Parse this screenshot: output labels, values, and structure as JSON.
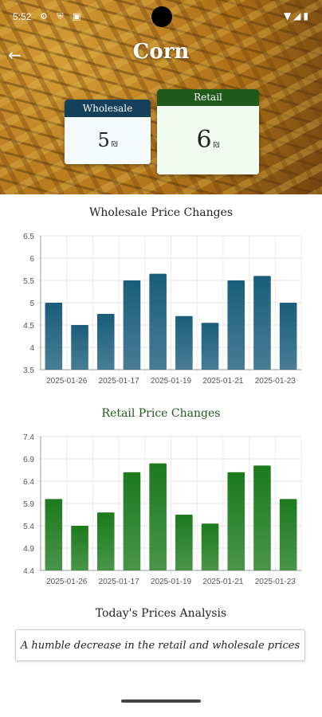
{
  "status_bar": {
    "time": "5:52"
  },
  "header": {
    "title": "Corn"
  },
  "prices": {
    "wholesale": {
      "label": "Wholesale",
      "value": "5",
      "unit": "₪"
    },
    "retail": {
      "label": "Retail",
      "value": "6",
      "unit": "₪"
    }
  },
  "colors": {
    "wholesale": "#14405c",
    "wholesale_bar": "#1a5d7a",
    "retail": "#1f5a1a",
    "retail_bar": "#1c7a1c"
  },
  "chart_data": [
    {
      "type": "bar",
      "title": "Wholesale Price Changes",
      "categories": [
        "2025-01-26",
        "",
        "2025-01-17",
        "",
        "2025-01-19",
        "",
        "2025-01-21",
        "",
        "2025-01-23",
        ""
      ],
      "values": [
        5.0,
        4.5,
        4.75,
        5.5,
        5.65,
        4.7,
        4.55,
        5.5,
        5.6,
        5.0
      ],
      "ylim": [
        3.5,
        6.5
      ],
      "yticks": [
        "3.5",
        "4",
        "4.5",
        "5",
        "5.5",
        "6",
        "6.5"
      ],
      "grid": true
    },
    {
      "type": "bar",
      "title": "Retail Price Changes",
      "categories": [
        "2025-01-26",
        "",
        "2025-01-17",
        "",
        "2025-01-19",
        "",
        "2025-01-21",
        "",
        "2025-01-23",
        ""
      ],
      "values": [
        6.0,
        5.4,
        5.7,
        6.6,
        6.8,
        5.65,
        5.45,
        6.6,
        6.75,
        6.0
      ],
      "ylim": [
        4.4,
        7.4
      ],
      "yticks": [
        "4.4",
        "4.9",
        "5.4",
        "5.9",
        "6.4",
        "6.9",
        "7.4"
      ],
      "grid": true
    }
  ],
  "analysis": {
    "title": "Today's Prices Analysis",
    "text": "A humble decrease in the retail and wholesale prices"
  }
}
